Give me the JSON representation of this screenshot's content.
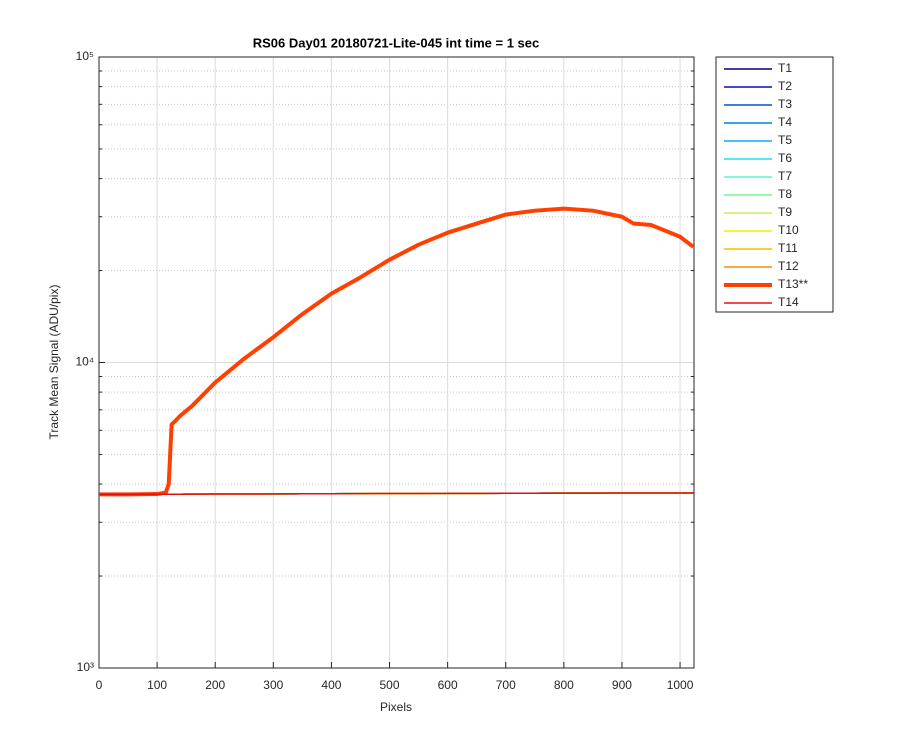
{
  "chart_data": {
    "type": "line",
    "title": "RS06 Day01 20180721-Lite-045 int time = 1 sec",
    "xlabel": "Pixels",
    "ylabel": "Track Mean Signal (ADU/pix)",
    "yscale": "log",
    "grid": true,
    "legend": "outside-right",
    "xlim": [
      0,
      1024
    ],
    "xticks": [
      0,
      100,
      200,
      300,
      400,
      500,
      600,
      700,
      800,
      900,
      1000
    ],
    "ylim": [
      1000,
      100000
    ],
    "yticks": [
      {
        "value": 1000,
        "label": "10³"
      },
      {
        "value": 10000,
        "label": "10⁴"
      },
      {
        "value": 100000,
        "label": "10⁵"
      }
    ],
    "yminorticks": [
      2000,
      3000,
      4000,
      5000,
      6000,
      7000,
      8000,
      9000,
      20000,
      30000,
      40000,
      50000,
      60000,
      70000,
      80000,
      90000
    ],
    "x": [
      0,
      50,
      100,
      115,
      120,
      125,
      130,
      140,
      160,
      200,
      250,
      300,
      350,
      400,
      450,
      500,
      550,
      600,
      650,
      700,
      750,
      800,
      850,
      900,
      920,
      950,
      1000,
      1023
    ],
    "series": [
      {
        "name": "T1",
        "color": "#000080",
        "width": 1.5,
        "values": [
          3700,
          3700,
          3705,
          3705,
          3705,
          3705,
          3706,
          3706,
          3707,
          3710,
          3712,
          3715,
          3718,
          3720,
          3722,
          3725,
          3727,
          3728,
          3730,
          3732,
          3733,
          3735,
          3736,
          3738,
          3738,
          3739,
          3740,
          3740
        ]
      },
      {
        "name": "T2",
        "color": "#0010c0",
        "width": 1.5,
        "values": [
          3700,
          3700,
          3705,
          3705,
          3705,
          3705,
          3706,
          3706,
          3707,
          3710,
          3712,
          3715,
          3718,
          3720,
          3722,
          3725,
          3727,
          3728,
          3730,
          3732,
          3733,
          3735,
          3736,
          3738,
          3738,
          3739,
          3740,
          3740
        ]
      },
      {
        "name": "T3",
        "color": "#0050d8",
        "width": 1.5,
        "values": [
          3700,
          3700,
          3705,
          3705,
          3705,
          3705,
          3706,
          3706,
          3707,
          3710,
          3712,
          3715,
          3718,
          3720,
          3722,
          3725,
          3727,
          3728,
          3730,
          3732,
          3733,
          3735,
          3736,
          3738,
          3738,
          3739,
          3740,
          3740
        ]
      },
      {
        "name": "T4",
        "color": "#0080e0",
        "width": 1.5,
        "values": [
          3700,
          3700,
          3705,
          3705,
          3705,
          3705,
          3706,
          3706,
          3707,
          3710,
          3712,
          3715,
          3718,
          3720,
          3722,
          3725,
          3727,
          3728,
          3730,
          3732,
          3733,
          3735,
          3736,
          3738,
          3738,
          3739,
          3740,
          3740
        ]
      },
      {
        "name": "T5",
        "color": "#00b0f0",
        "width": 1.5,
        "values": [
          3700,
          3700,
          3705,
          3705,
          3705,
          3705,
          3706,
          3706,
          3707,
          3710,
          3712,
          3715,
          3718,
          3720,
          3722,
          3725,
          3727,
          3728,
          3730,
          3732,
          3733,
          3735,
          3736,
          3738,
          3738,
          3739,
          3740,
          3740
        ]
      },
      {
        "name": "T6",
        "color": "#20e0f0",
        "width": 1.5,
        "values": [
          3700,
          3700,
          3705,
          3705,
          3705,
          3705,
          3706,
          3706,
          3707,
          3710,
          3712,
          3715,
          3718,
          3720,
          3722,
          3725,
          3727,
          3728,
          3730,
          3732,
          3733,
          3735,
          3736,
          3738,
          3738,
          3739,
          3740,
          3740
        ]
      },
      {
        "name": "T7",
        "color": "#60f0d0",
        "width": 1.5,
        "values": [
          3700,
          3700,
          3705,
          3705,
          3705,
          3705,
          3706,
          3706,
          3707,
          3710,
          3712,
          3715,
          3718,
          3720,
          3722,
          3725,
          3727,
          3728,
          3730,
          3732,
          3733,
          3735,
          3736,
          3738,
          3738,
          3739,
          3740,
          3740
        ]
      },
      {
        "name": "T8",
        "color": "#80f090",
        "width": 1.5,
        "values": [
          3700,
          3700,
          3705,
          3705,
          3705,
          3705,
          3706,
          3706,
          3707,
          3710,
          3712,
          3715,
          3718,
          3720,
          3722,
          3725,
          3727,
          3728,
          3730,
          3732,
          3733,
          3735,
          3736,
          3738,
          3738,
          3739,
          3740,
          3740
        ]
      },
      {
        "name": "T9",
        "color": "#c0f060",
        "width": 1.5,
        "values": [
          3700,
          3700,
          3705,
          3705,
          3705,
          3705,
          3706,
          3706,
          3707,
          3710,
          3712,
          3715,
          3718,
          3720,
          3722,
          3725,
          3727,
          3728,
          3730,
          3732,
          3733,
          3735,
          3736,
          3738,
          3738,
          3739,
          3740,
          3740
        ]
      },
      {
        "name": "T10",
        "color": "#f0f000",
        "width": 1.5,
        "values": [
          3700,
          3700,
          3705,
          3705,
          3705,
          3705,
          3706,
          3706,
          3707,
          3710,
          3712,
          3715,
          3718,
          3720,
          3722,
          3725,
          3727,
          3728,
          3730,
          3732,
          3733,
          3735,
          3736,
          3738,
          3738,
          3739,
          3740,
          3740
        ]
      },
      {
        "name": "T11",
        "color": "#f0c000",
        "width": 1.5,
        "values": [
          3700,
          3700,
          3705,
          3705,
          3705,
          3705,
          3706,
          3706,
          3707,
          3710,
          3712,
          3715,
          3718,
          3720,
          3722,
          3725,
          3727,
          3728,
          3730,
          3732,
          3733,
          3735,
          3736,
          3738,
          3738,
          3739,
          3740,
          3740
        ]
      },
      {
        "name": "T12",
        "color": "#f09000",
        "width": 1.5,
        "values": [
          3700,
          3700,
          3705,
          3705,
          3705,
          3705,
          3706,
          3706,
          3707,
          3710,
          3712,
          3715,
          3718,
          3720,
          3722,
          3725,
          3727,
          3728,
          3730,
          3732,
          3733,
          3735,
          3736,
          3738,
          3738,
          3739,
          3740,
          3740
        ]
      },
      {
        "name": "T13**",
        "color": "#ff4000",
        "width": 4,
        "values": [
          3700,
          3700,
          3710,
          3750,
          4000,
          6270,
          6400,
          6700,
          7200,
          8600,
          10300,
          12100,
          14400,
          16800,
          19000,
          21700,
          24300,
          26600,
          28500,
          30500,
          31400,
          31900,
          31400,
          30000,
          28500,
          28200,
          25800,
          23900
        ]
      },
      {
        "name": "T14",
        "color": "#e01010",
        "width": 1.5,
        "values": [
          3700,
          3700,
          3705,
          3705,
          3705,
          3705,
          3706,
          3706,
          3707,
          3710,
          3712,
          3715,
          3718,
          3720,
          3722,
          3725,
          3727,
          3728,
          3730,
          3732,
          3733,
          3735,
          3736,
          3738,
          3738,
          3739,
          3740,
          3740
        ]
      }
    ]
  }
}
